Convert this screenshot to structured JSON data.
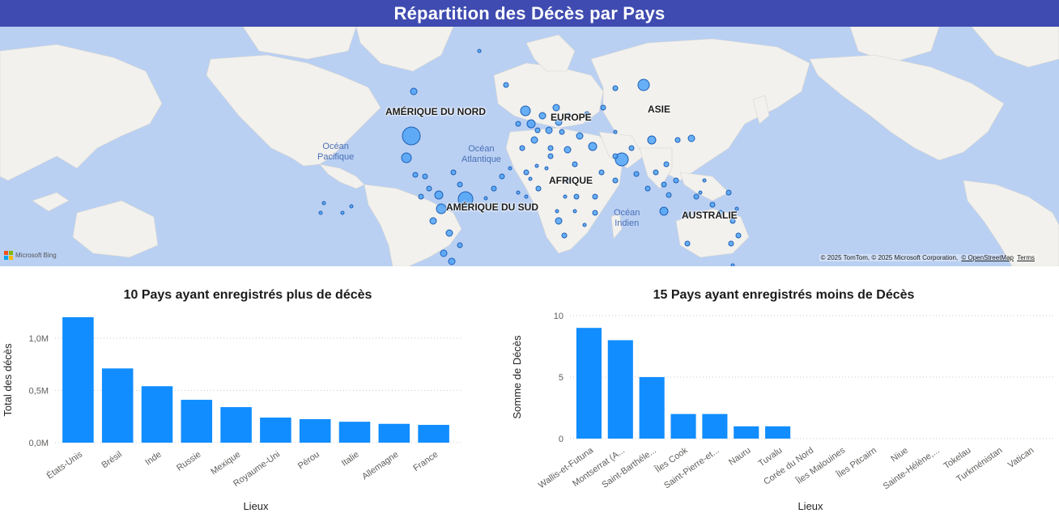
{
  "header": {
    "title": "Répartition des Décès par Pays"
  },
  "map": {
    "continent_labels": [
      "AMÉRIQUE DU NORD",
      "EUROPE",
      "ASIE",
      "AFRIQUE",
      "AMÉRIQUE DU SUD",
      "AUSTRALIE"
    ],
    "ocean_labels": [
      {
        "line1": "Océan",
        "line2": "Pacifique"
      },
      {
        "line1": "Océan",
        "line2": "Atlantique"
      },
      {
        "line1": "Océan",
        "line2": "Indien"
      }
    ],
    "attribution": "© 2025 TomTom, © 2025 Microsoft Corporation,",
    "attribution_links": [
      "© OpenStreetMap",
      "Terms"
    ],
    "logo_text": "Microsoft Bing",
    "colors": {
      "ocean": "#b9d0f3",
      "land": "#f2f1ee",
      "bubble_fill": "#4fa3f7",
      "bubble_stroke": "#1f5fb4"
    }
  },
  "chart_data": [
    {
      "type": "bar",
      "title": "10 Pays ayant enregistrés plus de décès",
      "xlabel": "Lieux",
      "ylabel": "Total des décès",
      "categories": [
        "États-Unis",
        "Brésil",
        "Inde",
        "Russie",
        "Mexique",
        "Royaume-Uni",
        "Pérou",
        "Italie",
        "Allemagne",
        "France"
      ],
      "values": [
        1200000,
        710000,
        540000,
        410000,
        340000,
        240000,
        225000,
        200000,
        180000,
        170000
      ],
      "ylim": [
        0,
        1200000
      ],
      "yticks": [
        0,
        500000,
        1000000
      ],
      "ytick_labels": [
        "0,0M",
        "0,5M",
        "1,0M"
      ],
      "grid": true,
      "color": "#118dff"
    },
    {
      "type": "bar",
      "title": "15 Pays ayant enregistrés moins de Décès",
      "xlabel": "Lieux",
      "ylabel": "Somme de Décès",
      "categories": [
        "Wallis-et-Futuna",
        "Montserrat (A...",
        "Saint-Barthéle...",
        "Îles Cook",
        "Saint-Pierre-et...",
        "Nauru",
        "Tuvalu",
        "Corée du Nord",
        "Îles Malouines",
        "Îles Pitcairn",
        "Niue",
        "Sainte-Hélène,...",
        "Tokelau",
        "Turkménistan",
        "Vatican"
      ],
      "values": [
        9,
        8,
        5,
        2,
        2,
        1,
        1,
        0,
        0,
        0,
        0,
        0,
        0,
        0,
        0
      ],
      "ylim": [
        0,
        10
      ],
      "yticks": [
        0,
        5,
        10
      ],
      "ytick_labels": [
        "0",
        "5",
        "10"
      ],
      "grid": true,
      "color": "#118dff"
    }
  ]
}
